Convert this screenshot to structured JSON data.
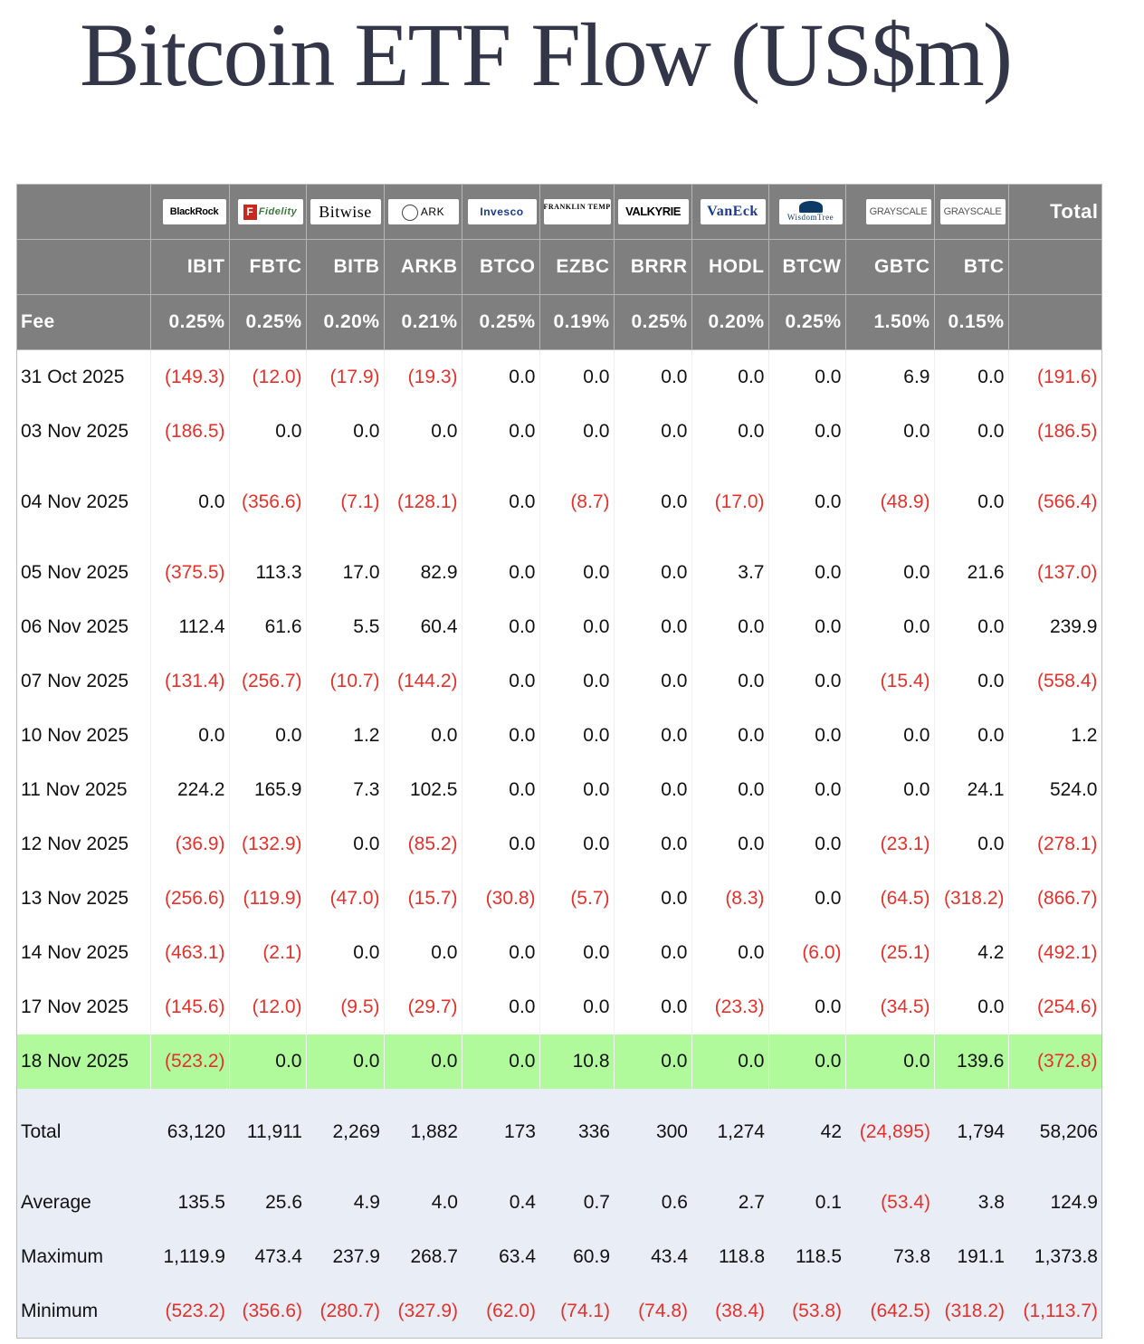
{
  "page": {
    "title": "Bitcoin ETF Flow (US$m)"
  },
  "columns": [
    {
      "logo": "BlackRock",
      "ticker": "IBIT",
      "fee": "0.25%",
      "logo_icon": "blackrock-logo"
    },
    {
      "logo": "Fidelity",
      "ticker": "FBTC",
      "fee": "0.25%",
      "logo_icon": "fidelity-logo"
    },
    {
      "logo": "Bitwise",
      "ticker": "BITB",
      "fee": "0.20%",
      "logo_icon": "bitwise-logo"
    },
    {
      "logo": "ARK",
      "ticker": "ARKB",
      "fee": "0.21%",
      "logo_icon": "ark-invest-logo"
    },
    {
      "logo": "Invesco",
      "ticker": "BTCO",
      "fee": "0.25%",
      "logo_icon": "invesco-logo"
    },
    {
      "logo": "FRANKLIN TEMPLETON",
      "ticker": "EZBC",
      "fee": "0.19%",
      "logo_icon": "franklin-templeton-logo"
    },
    {
      "logo": "VALKYRIE",
      "ticker": "BRRR",
      "fee": "0.25%",
      "logo_icon": "valkyrie-logo"
    },
    {
      "logo": "VanEck",
      "ticker": "HODL",
      "fee": "0.20%",
      "logo_icon": "vaneck-logo"
    },
    {
      "logo": "WisdomTree",
      "ticker": "BTCW",
      "fee": "0.25%",
      "logo_icon": "wisdomtree-logo"
    },
    {
      "logo": "GRAYSCALE",
      "ticker": "GBTC",
      "fee": "1.50%",
      "logo_icon": "grayscale-logo"
    },
    {
      "logo": "GRAYSCALE",
      "ticker": "BTC",
      "fee": "0.15%",
      "logo_icon": "grayscale-logo"
    }
  ],
  "header": {
    "total_label": "Total",
    "fee_label": "Fee"
  },
  "rows": [
    {
      "date": "31 Oct 2025",
      "values": [
        "(149.3)",
        "(12.0)",
        "(17.9)",
        "(19.3)",
        "0.0",
        "0.0",
        "0.0",
        "0.0",
        "0.0",
        "6.9",
        "0.0"
      ],
      "total": "(191.6)"
    },
    {
      "date": "03 Nov 2025",
      "values": [
        "(186.5)",
        "0.0",
        "0.0",
        "0.0",
        "0.0",
        "0.0",
        "0.0",
        "0.0",
        "0.0",
        "0.0",
        "0.0"
      ],
      "total": "(186.5)"
    },
    {
      "date": "04 Nov 2025",
      "values": [
        "0.0",
        "(356.6)",
        "(7.1)",
        "(128.1)",
        "0.0",
        "(8.7)",
        "0.0",
        "(17.0)",
        "0.0",
        "(48.9)",
        "0.0"
      ],
      "total": "(566.4)"
    },
    {
      "date": "05 Nov 2025",
      "values": [
        "(375.5)",
        "113.3",
        "17.0",
        "82.9",
        "0.0",
        "0.0",
        "0.0",
        "3.7",
        "0.0",
        "0.0",
        "21.6"
      ],
      "total": "(137.0)"
    },
    {
      "date": "06 Nov 2025",
      "values": [
        "112.4",
        "61.6",
        "5.5",
        "60.4",
        "0.0",
        "0.0",
        "0.0",
        "0.0",
        "0.0",
        "0.0",
        "0.0"
      ],
      "total": "239.9"
    },
    {
      "date": "07 Nov 2025",
      "values": [
        "(131.4)",
        "(256.7)",
        "(10.7)",
        "(144.2)",
        "0.0",
        "0.0",
        "0.0",
        "0.0",
        "0.0",
        "(15.4)",
        "0.0"
      ],
      "total": "(558.4)"
    },
    {
      "date": "10 Nov 2025",
      "values": [
        "0.0",
        "0.0",
        "1.2",
        "0.0",
        "0.0",
        "0.0",
        "0.0",
        "0.0",
        "0.0",
        "0.0",
        "0.0"
      ],
      "total": "1.2"
    },
    {
      "date": "11 Nov 2025",
      "values": [
        "224.2",
        "165.9",
        "7.3",
        "102.5",
        "0.0",
        "0.0",
        "0.0",
        "0.0",
        "0.0",
        "0.0",
        "24.1"
      ],
      "total": "524.0"
    },
    {
      "date": "12 Nov 2025",
      "values": [
        "(36.9)",
        "(132.9)",
        "0.0",
        "(85.2)",
        "0.0",
        "0.0",
        "0.0",
        "0.0",
        "0.0",
        "(23.1)",
        "0.0"
      ],
      "total": "(278.1)"
    },
    {
      "date": "13 Nov 2025",
      "values": [
        "(256.6)",
        "(119.9)",
        "(47.0)",
        "(15.7)",
        "(30.8)",
        "(5.7)",
        "0.0",
        "(8.3)",
        "0.0",
        "(64.5)",
        "(318.2)"
      ],
      "total": "(866.7)"
    },
    {
      "date": "14 Nov 2025",
      "values": [
        "(463.1)",
        "(2.1)",
        "0.0",
        "0.0",
        "0.0",
        "0.0",
        "0.0",
        "0.0",
        "(6.0)",
        "(25.1)",
        "4.2"
      ],
      "total": "(492.1)"
    },
    {
      "date": "17 Nov 2025",
      "values": [
        "(145.6)",
        "(12.0)",
        "(9.5)",
        "(29.7)",
        "0.0",
        "0.0",
        "0.0",
        "(23.3)",
        "0.0",
        "(34.5)",
        "0.0"
      ],
      "total": "(254.6)"
    },
    {
      "date": "18 Nov 2025",
      "values": [
        "(523.2)",
        "0.0",
        "0.0",
        "0.0",
        "0.0",
        "10.8",
        "0.0",
        "0.0",
        "0.0",
        "0.0",
        "139.6"
      ],
      "total": "(372.8)"
    }
  ],
  "summary": [
    {
      "label": "Total",
      "values": [
        "63,120",
        "11,911",
        "2,269",
        "1,882",
        "173",
        "336",
        "300",
        "1,274",
        "42",
        "(24,895)",
        "1,794"
      ],
      "total": "58,206"
    },
    {
      "label": "Average",
      "values": [
        "135.5",
        "25.6",
        "4.9",
        "4.0",
        "0.4",
        "0.7",
        "0.6",
        "2.7",
        "0.1",
        "(53.4)",
        "3.8"
      ],
      "total": "124.9"
    },
    {
      "label": "Maximum",
      "values": [
        "1,119.9",
        "473.4",
        "237.9",
        "268.7",
        "63.4",
        "60.9",
        "43.4",
        "118.8",
        "118.5",
        "73.8",
        "191.1"
      ],
      "total": "1,373.8"
    },
    {
      "label": "Minimum",
      "values": [
        "(523.2)",
        "(356.6)",
        "(280.7)",
        "(327.9)",
        "(62.0)",
        "(74.1)",
        "(74.8)",
        "(38.4)",
        "(53.8)",
        "(642.5)",
        "(318.2)"
      ],
      "total": "(1,113.7)"
    }
  ],
  "colors": {
    "header_bg": "#7f7f7f",
    "negative": "#e4312b",
    "highlight_row": "#b1fa9c",
    "summary_bg": "#e9edf6",
    "title": "#333649"
  }
}
